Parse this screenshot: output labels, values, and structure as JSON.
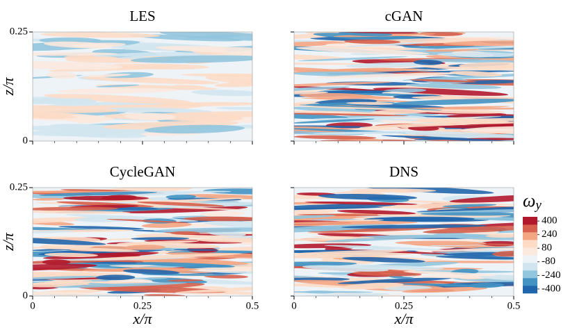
{
  "chart_data": [
    {
      "type": "contour",
      "title": "LES",
      "xlim": [
        0,
        0.5
      ],
      "ylim": [
        0,
        0.25
      ],
      "xticks": [
        0,
        0.25,
        0.5
      ],
      "yticks": [
        0,
        0.25
      ],
      "ylabel": "z/π"
    },
    {
      "type": "contour",
      "title": "cGAN",
      "xlim": [
        0,
        0.5
      ],
      "ylim": [
        0,
        0.25
      ],
      "xticks": [
        0,
        0.25,
        0.5
      ],
      "yticks": [
        0,
        0.25
      ]
    },
    {
      "type": "contour",
      "title": "CycleGAN",
      "xlim": [
        0,
        0.5
      ],
      "ylim": [
        0,
        0.25
      ],
      "xticks": [
        0,
        0.25,
        0.5
      ],
      "yticks": [
        0,
        0.25
      ],
      "xlabel": "x/π",
      "ylabel": "z/π"
    },
    {
      "type": "contour",
      "title": "DNS",
      "xlim": [
        0,
        0.5
      ],
      "ylim": [
        0,
        0.25
      ],
      "xticks": [
        0,
        0.25,
        0.5
      ],
      "yticks": [
        0,
        0.25
      ],
      "xlabel": "x/π",
      "colorbar": {
        "label": "ω",
        "label_subscript": "y",
        "clim": [
          -450,
          450
        ],
        "ticks": [
          400,
          240,
          80,
          -80,
          -240,
          -400
        ],
        "colors": [
          "#2166ac",
          "#4393c3",
          "#92c5de",
          "#d1e5f0",
          "#eef3f7",
          "#fbe9de",
          "#fddbc7",
          "#f4a582",
          "#d6604d",
          "#b2182b"
        ]
      }
    }
  ]
}
